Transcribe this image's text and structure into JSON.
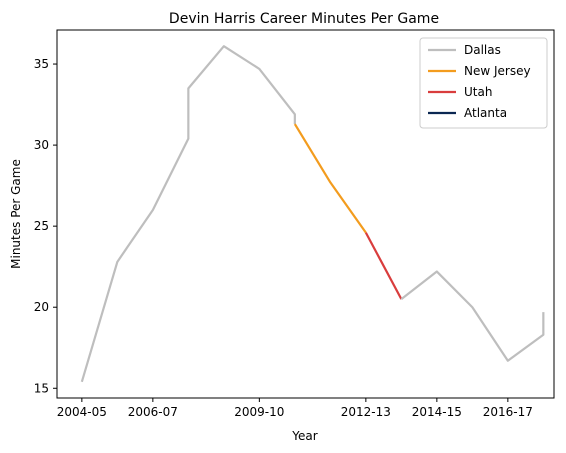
{
  "chart_data": {
    "type": "line",
    "title": "Devin Harris Career Minutes Per Game",
    "xlabel": "Year",
    "ylabel": "Minutes Per Game",
    "x_ticks": [
      "2004-05",
      "2006-07",
      "2009-10",
      "2012-13",
      "2014-15",
      "2016-17"
    ],
    "x_tick_positions": [
      0,
      2,
      5,
      8,
      10,
      12
    ],
    "xlim": [
      -0.7,
      13.3
    ],
    "ylim": [
      14.4,
      37.1
    ],
    "y_ticks": [
      15,
      20,
      25,
      30,
      35
    ],
    "grid": false,
    "legend_placement": "top-right",
    "series": [
      {
        "name": "Dallas",
        "color": "#bebebe",
        "points": [
          [
            0,
            15.4
          ],
          [
            1,
            22.8
          ],
          [
            2,
            26.0
          ],
          [
            3,
            30.4
          ],
          [
            3,
            33.5
          ],
          [
            4,
            36.1
          ],
          [
            5,
            34.7
          ],
          [
            6,
            31.9
          ],
          [
            6,
            31.3
          ]
        ]
      },
      {
        "name": "New Jersey",
        "color": "#f39c1e",
        "points": [
          [
            6,
            31.3
          ],
          [
            7,
            27.7
          ],
          [
            8,
            24.6
          ]
        ]
      },
      {
        "name": "Utah",
        "color": "#d93d3d",
        "points": [
          [
            8,
            24.6
          ],
          [
            9,
            20.5
          ]
        ]
      },
      {
        "name": "Atlanta",
        "color": "#0b2752",
        "points": []
      },
      {
        "name": "",
        "color": "#bebebe",
        "points": [
          [
            9,
            20.5
          ],
          [
            10,
            22.2
          ],
          [
            11,
            20.0
          ],
          [
            12,
            16.7
          ],
          [
            13,
            18.3
          ],
          [
            13,
            19.7
          ]
        ]
      }
    ]
  }
}
